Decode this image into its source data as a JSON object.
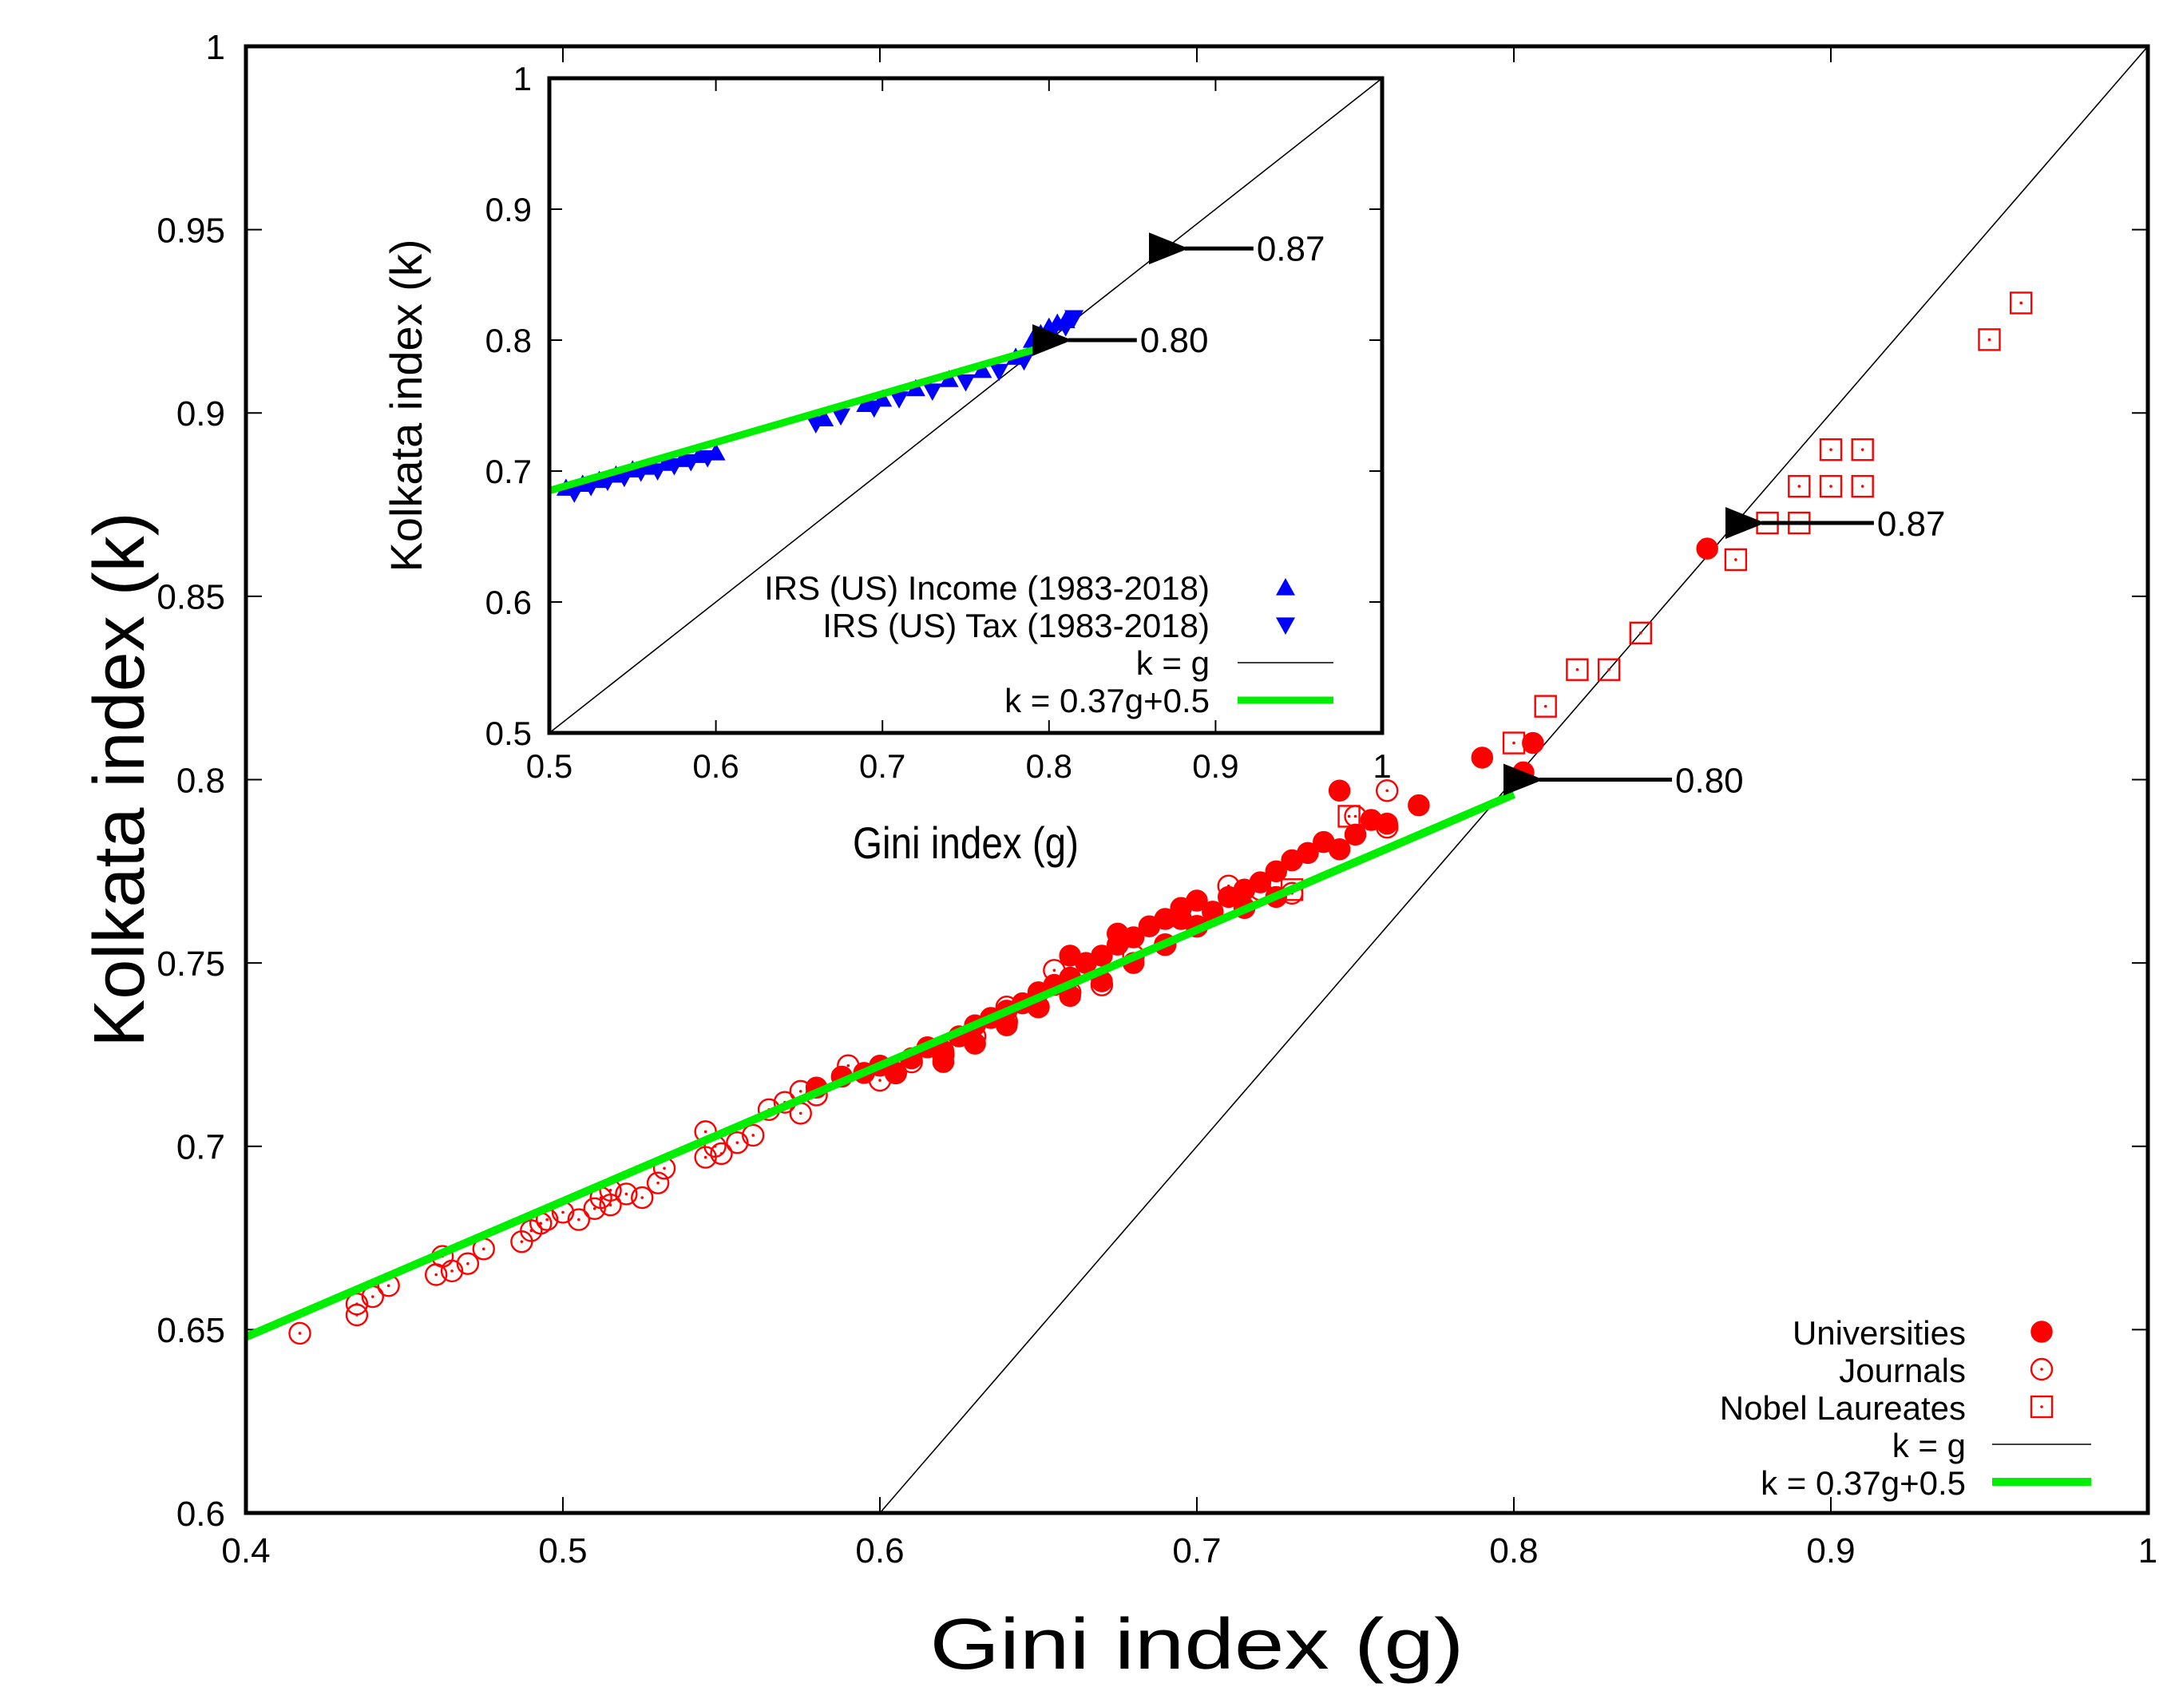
{
  "chart_data": [
    {
      "id": "main",
      "type": "scatter",
      "xlabel": "Gini index (g)",
      "ylabel": "Kolkata index (k)",
      "xlim": [
        0.4,
        1.0
      ],
      "ylim": [
        0.6,
        1.0
      ],
      "xticks": [
        0.4,
        0.5,
        0.6,
        0.7,
        0.8,
        0.9,
        1.0
      ],
      "xtick_labels": [
        "0.4",
        "0.5",
        "0.6",
        "0.7",
        "0.8",
        "0.9",
        "1"
      ],
      "yticks": [
        0.6,
        0.65,
        0.7,
        0.75,
        0.8,
        0.85,
        0.9,
        0.95,
        1.0
      ],
      "ytick_labels": [
        "0.6",
        "0.65",
        "0.7",
        "0.75",
        "0.8",
        "0.85",
        "0.9",
        "0.95",
        "1"
      ],
      "legend_position": "bottom-right",
      "series": [
        {
          "name": "Universities",
          "marker": "filled-circle",
          "color": "#ff0000",
          "points": [
            [
              0.58,
              0.716
            ],
            [
              0.588,
              0.719
            ],
            [
              0.595,
              0.72
            ],
            [
              0.6,
              0.722
            ],
            [
              0.605,
              0.72
            ],
            [
              0.61,
              0.724
            ],
            [
              0.615,
              0.727
            ],
            [
              0.62,
              0.726
            ],
            [
              0.625,
              0.73
            ],
            [
              0.63,
              0.733
            ],
            [
              0.635,
              0.735
            ],
            [
              0.64,
              0.737
            ],
            [
              0.645,
              0.739
            ],
            [
              0.65,
              0.742
            ],
            [
              0.655,
              0.744
            ],
            [
              0.66,
              0.746
            ],
            [
              0.665,
              0.75
            ],
            [
              0.67,
              0.752
            ],
            [
              0.675,
              0.755
            ],
            [
              0.68,
              0.757
            ],
            [
              0.685,
              0.76
            ],
            [
              0.69,
              0.762
            ],
            [
              0.695,
              0.765
            ],
            [
              0.7,
              0.767
            ],
            [
              0.705,
              0.764
            ],
            [
              0.71,
              0.768
            ],
            [
              0.715,
              0.77
            ],
            [
              0.72,
              0.772
            ],
            [
              0.725,
              0.775
            ],
            [
              0.73,
              0.778
            ],
            [
              0.735,
              0.78
            ],
            [
              0.74,
              0.783
            ],
            [
              0.745,
              0.797
            ],
            [
              0.75,
              0.785
            ],
            [
              0.755,
              0.789
            ],
            [
              0.77,
              0.793
            ],
            [
              0.79,
              0.806
            ],
            [
              0.803,
              0.802
            ],
            [
              0.806,
              0.81
            ],
            [
              0.861,
              0.863
            ],
            [
              0.66,
              0.741
            ],
            [
              0.67,
              0.745
            ],
            [
              0.68,
              0.75
            ],
            [
              0.69,
              0.755
            ],
            [
              0.7,
              0.76
            ],
            [
              0.65,
              0.738
            ],
            [
              0.64,
              0.733
            ],
            [
              0.62,
              0.723
            ],
            [
              0.66,
              0.752
            ],
            [
              0.675,
              0.758
            ],
            [
              0.695,
              0.762
            ],
            [
              0.715,
              0.765
            ],
            [
              0.725,
              0.768
            ],
            [
              0.745,
              0.781
            ],
            [
              0.76,
              0.788
            ],
            [
              0.63,
              0.728
            ]
          ]
        },
        {
          "name": "Journals",
          "marker": "open-circle-dot",
          "color": "#ff0000",
          "points": [
            [
              0.417,
              0.649
            ],
            [
              0.435,
              0.654
            ],
            [
              0.435,
              0.657
            ],
            [
              0.44,
              0.659
            ],
            [
              0.445,
              0.662
            ],
            [
              0.46,
              0.665
            ],
            [
              0.462,
              0.67
            ],
            [
              0.465,
              0.666
            ],
            [
              0.47,
              0.668
            ],
            [
              0.475,
              0.672
            ],
            [
              0.487,
              0.674
            ],
            [
              0.49,
              0.677
            ],
            [
              0.493,
              0.679
            ],
            [
              0.5,
              0.682
            ],
            [
              0.505,
              0.68
            ],
            [
              0.51,
              0.683
            ],
            [
              0.512,
              0.686
            ],
            [
              0.515,
              0.684
            ],
            [
              0.52,
              0.687
            ],
            [
              0.525,
              0.686
            ],
            [
              0.53,
              0.69
            ],
            [
              0.532,
              0.694
            ],
            [
              0.545,
              0.697
            ],
            [
              0.548,
              0.7
            ],
            [
              0.55,
              0.698
            ],
            [
              0.555,
              0.701
            ],
            [
              0.56,
              0.703
            ],
            [
              0.565,
              0.71
            ],
            [
              0.57,
              0.712
            ],
            [
              0.575,
              0.709
            ],
            [
              0.58,
              0.714
            ],
            [
              0.59,
              0.722
            ],
            [
              0.6,
              0.718
            ],
            [
              0.61,
              0.723
            ],
            [
              0.62,
              0.725
            ],
            [
              0.63,
              0.73
            ],
            [
              0.64,
              0.734
            ],
            [
              0.65,
              0.738
            ],
            [
              0.66,
              0.742
            ],
            [
              0.67,
              0.744
            ],
            [
              0.68,
              0.752
            ],
            [
              0.69,
              0.755
            ],
            [
              0.7,
              0.76
            ],
            [
              0.71,
              0.771
            ],
            [
              0.72,
              0.77
            ],
            [
              0.73,
              0.769
            ],
            [
              0.75,
              0.79
            ],
            [
              0.76,
              0.787
            ],
            [
              0.76,
              0.797
            ],
            [
              0.545,
              0.704
            ],
            [
              0.515,
              0.688
            ],
            [
              0.495,
              0.68
            ],
            [
              0.575,
              0.715
            ],
            [
              0.605,
              0.72
            ],
            [
              0.64,
              0.738
            ],
            [
              0.655,
              0.748
            ]
          ]
        },
        {
          "name": "Nobel Laureates",
          "marker": "open-square-dot",
          "color": "#ff0000",
          "points": [
            [
              0.73,
              0.77
            ],
            [
              0.748,
              0.79
            ],
            [
              0.8,
              0.81
            ],
            [
              0.81,
              0.82
            ],
            [
              0.82,
              0.83
            ],
            [
              0.83,
              0.83
            ],
            [
              0.84,
              0.84
            ],
            [
              0.87,
              0.86
            ],
            [
              0.88,
              0.87
            ],
            [
              0.89,
              0.87
            ],
            [
              0.89,
              0.88
            ],
            [
              0.9,
              0.88
            ],
            [
              0.91,
              0.88
            ],
            [
              0.9,
              0.89
            ],
            [
              0.91,
              0.89
            ],
            [
              0.95,
              0.92
            ],
            [
              0.96,
              0.93
            ]
          ]
        },
        {
          "name": "k = g",
          "type": "line",
          "color": "#000000",
          "x": [
            0.6,
            1.0
          ],
          "y": [
            0.6,
            1.0
          ]
        },
        {
          "name": "k = 0.37g+0.5",
          "type": "line",
          "color": "#00ee00",
          "x": [
            0.4,
            0.8
          ],
          "y": [
            0.648,
            0.796
          ]
        }
      ],
      "annotations": [
        {
          "text": "0.87",
          "x": 0.87,
          "y": 0.87
        },
        {
          "text": "0.80",
          "x": 0.8,
          "y": 0.8
        }
      ]
    },
    {
      "id": "inset",
      "type": "scatter",
      "xlabel": "Gini index (g)",
      "ylabel": "Kolkata index (k)",
      "xlim": [
        0.5,
        1.0
      ],
      "ylim": [
        0.5,
        1.0
      ],
      "xticks": [
        0.5,
        0.6,
        0.7,
        0.8,
        0.9,
        1.0
      ],
      "xtick_labels": [
        "0.5",
        "0.6",
        "0.7",
        "0.8",
        "0.9",
        "1"
      ],
      "yticks": [
        0.5,
        0.6,
        0.7,
        0.8,
        0.9,
        1.0
      ],
      "ytick_labels": [
        "0.5",
        "0.6",
        "0.7",
        "0.8",
        "0.9",
        "1"
      ],
      "legend_position": "bottom-left",
      "series": [
        {
          "name": "IRS (US)  Income (1983-2018)",
          "marker": "triangle-up",
          "color": "#0000ff",
          "points": [
            [
              0.51,
              0.687
            ],
            [
              0.52,
              0.69
            ],
            [
              0.53,
              0.693
            ],
            [
              0.54,
              0.697
            ],
            [
              0.55,
              0.701
            ],
            [
              0.56,
              0.703
            ],
            [
              0.57,
              0.706
            ],
            [
              0.58,
              0.709
            ],
            [
              0.59,
              0.712
            ],
            [
              0.6,
              0.714
            ],
            [
              0.665,
              0.74
            ],
            [
              0.69,
              0.751
            ],
            [
              0.7,
              0.755
            ],
            [
              0.72,
              0.763
            ],
            [
              0.74,
              0.77
            ],
            [
              0.76,
              0.777
            ],
            [
              0.78,
              0.787
            ],
            [
              0.79,
              0.8
            ],
            [
              0.795,
              0.805
            ],
            [
              0.8,
              0.81
            ],
            [
              0.805,
              0.813
            ],
            [
              0.81,
              0.815
            ]
          ]
        },
        {
          "name": "IRS (US) Tax (1983-2018)",
          "marker": "triangle-down",
          "color": "#0000ff",
          "points": [
            [
              0.515,
              0.683
            ],
            [
              0.525,
              0.688
            ],
            [
              0.535,
              0.692
            ],
            [
              0.545,
              0.695
            ],
            [
              0.555,
              0.699
            ],
            [
              0.565,
              0.7
            ],
            [
              0.575,
              0.704
            ],
            [
              0.585,
              0.707
            ],
            [
              0.595,
              0.71
            ],
            [
              0.66,
              0.736
            ],
            [
              0.675,
              0.742
            ],
            [
              0.695,
              0.748
            ],
            [
              0.71,
              0.755
            ],
            [
              0.73,
              0.761
            ],
            [
              0.75,
              0.768
            ],
            [
              0.77,
              0.776
            ],
            [
              0.785,
              0.784
            ],
            [
              0.8,
              0.802
            ],
            [
              0.81,
              0.81
            ],
            [
              0.815,
              0.817
            ]
          ]
        },
        {
          "name": "k = g",
          "type": "line",
          "color": "#000000",
          "x": [
            0.5,
            1.0
          ],
          "y": [
            0.5,
            1.0
          ]
        },
        {
          "name": "k = 0.37g+0.5",
          "type": "line",
          "color": "#00ee00",
          "x": [
            0.5,
            0.8
          ],
          "y": [
            0.685,
            0.796
          ]
        }
      ],
      "annotations": [
        {
          "text": "0.87",
          "x": 0.87,
          "y": 0.87
        },
        {
          "text": "0.80",
          "x": 0.8,
          "y": 0.8
        }
      ]
    }
  ]
}
